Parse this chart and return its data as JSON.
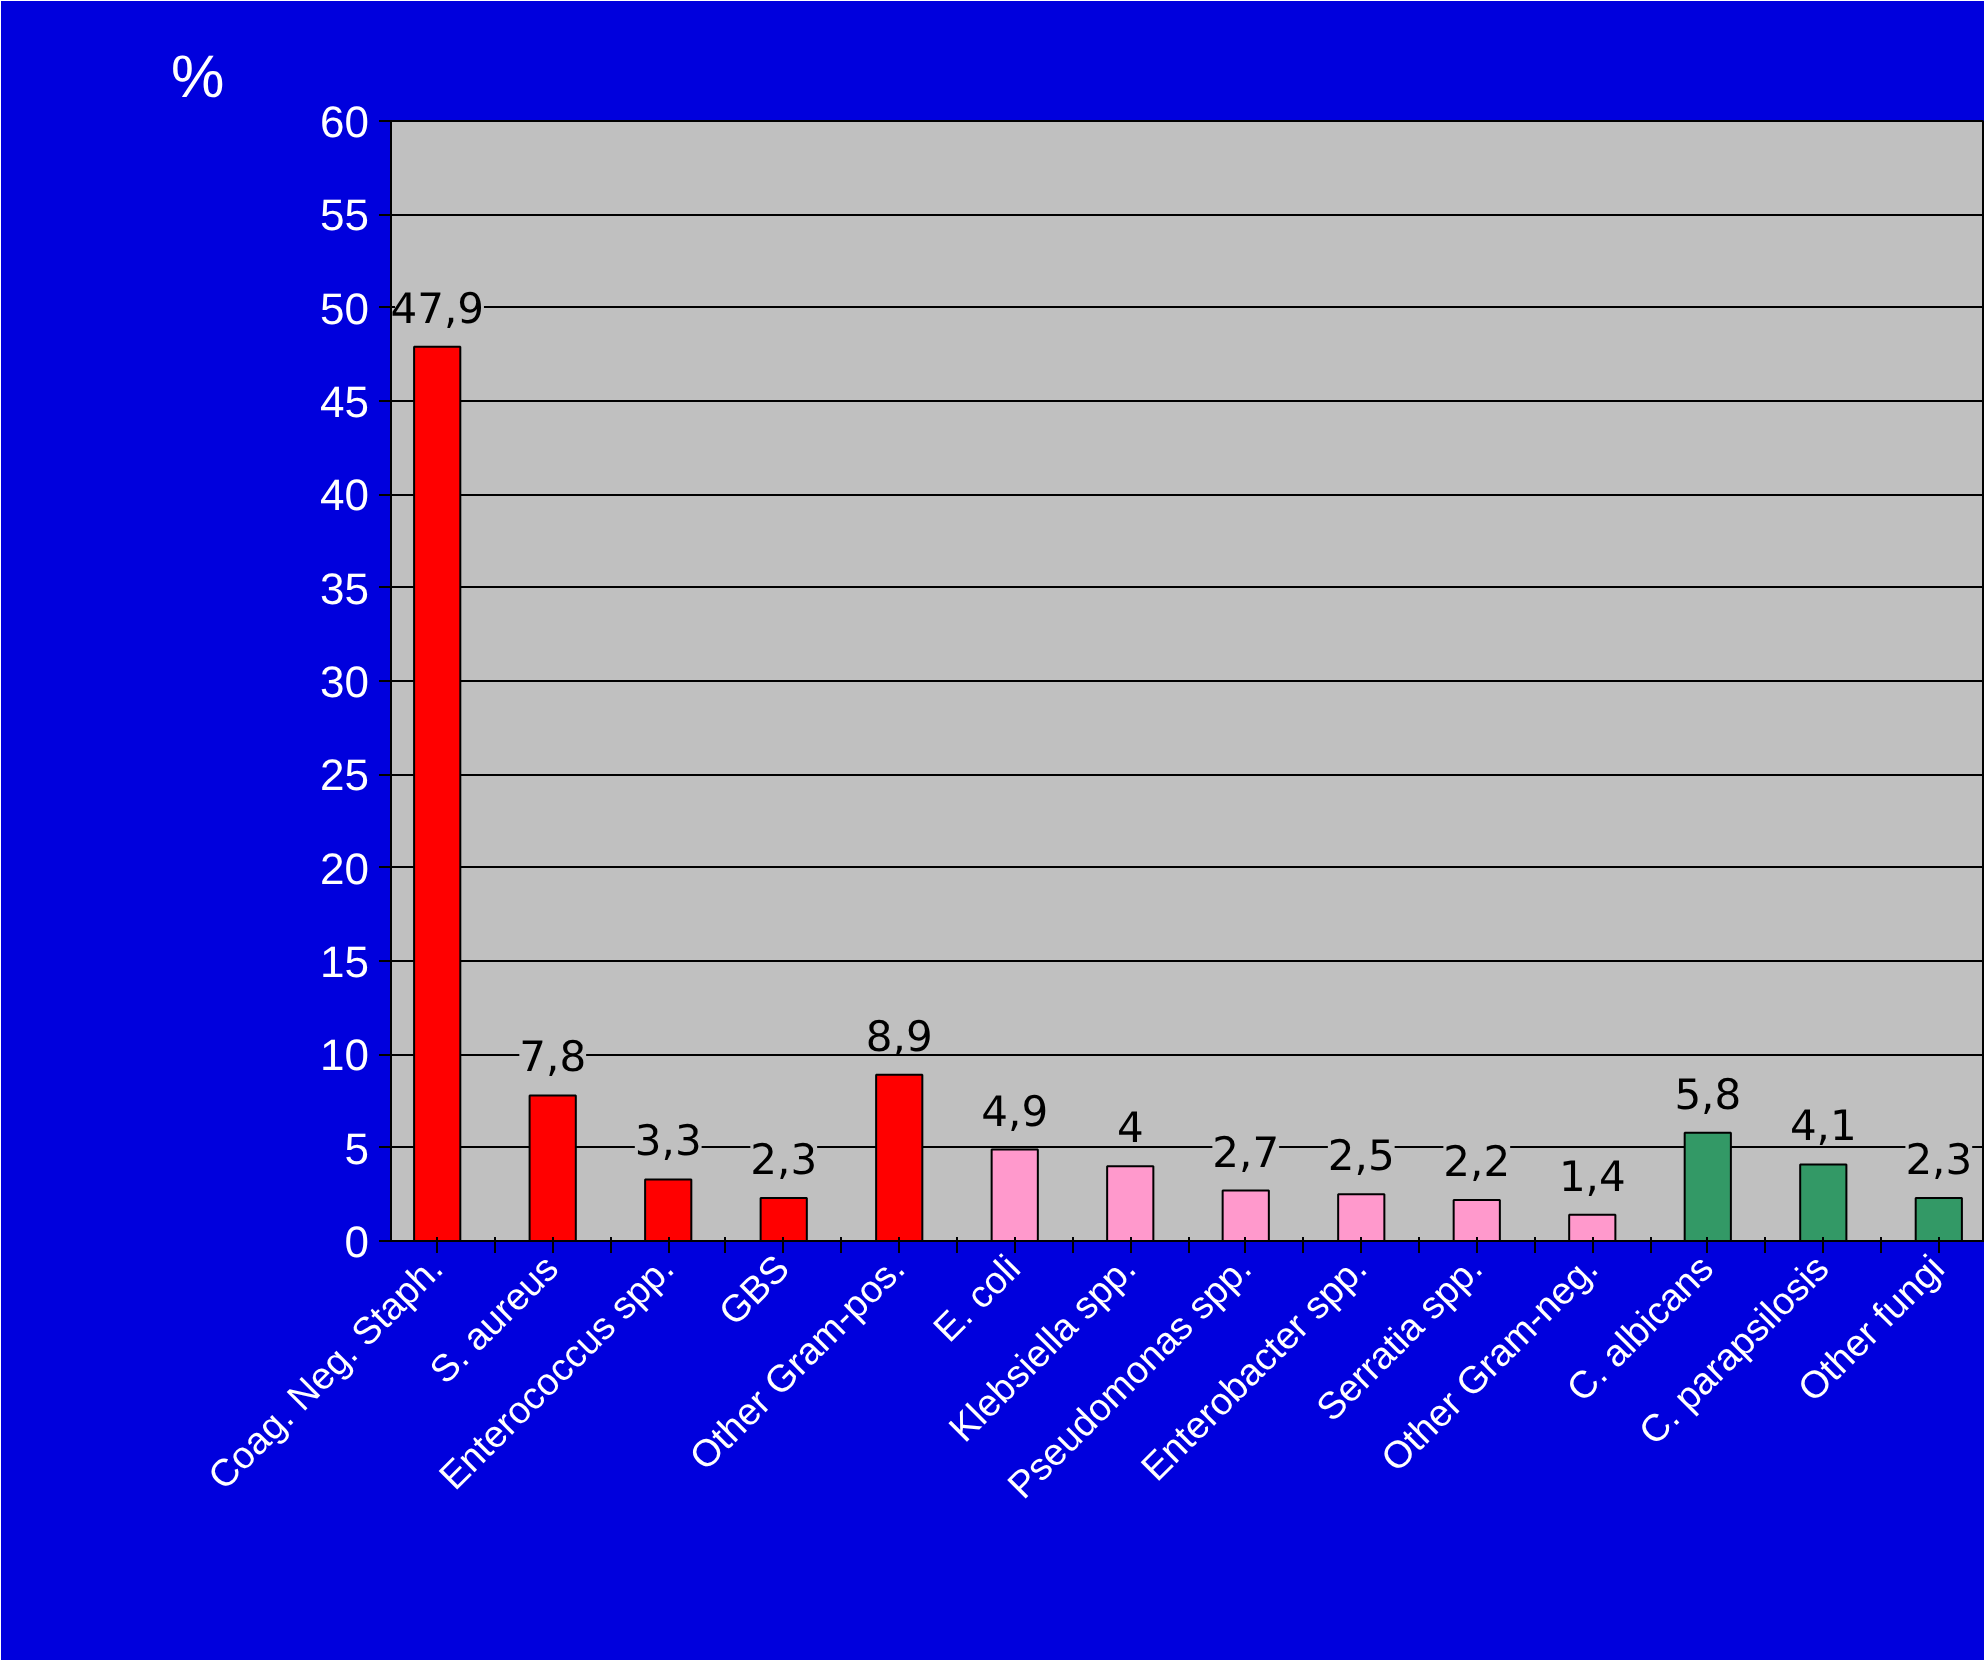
{
  "chart_data": {
    "type": "bar",
    "ylabel": "%",
    "categories": [
      "Coag. Neg. Staph.",
      "S. aureus",
      "Enterococcus spp.",
      "GBS",
      "Other Gram-pos.",
      "E. coli",
      "Klebsiella spp.",
      "Pseudomonas spp.",
      "Enterobacter spp.",
      "Serratia spp.",
      "Other Gram-neg.",
      "C. albicans",
      "C. parapsilosis",
      "Other fungi"
    ],
    "values": [
      47.9,
      7.8,
      3.3,
      2.3,
      8.9,
      4.9,
      4,
      2.7,
      2.5,
      2.2,
      1.4,
      5.8,
      4.1,
      2.3
    ],
    "value_labels": [
      "47,9",
      "7,8",
      "3,3",
      "2,3",
      "8,9",
      "4,9",
      "4",
      "2,7",
      "2,5",
      "2,2",
      "1,4",
      "5,8",
      "4,1",
      "2,3"
    ],
    "colors": [
      "#ff0000",
      "#ff0000",
      "#ff0000",
      "#ff0000",
      "#ff0000",
      "#ff99cc",
      "#ff99cc",
      "#ff99cc",
      "#ff99cc",
      "#ff99cc",
      "#ff99cc",
      "#339966",
      "#339966",
      "#339966"
    ],
    "ylim": [
      0,
      60
    ],
    "yticks": [
      0,
      5,
      10,
      15,
      20,
      25,
      30,
      35,
      40,
      45,
      50,
      55,
      60
    ],
    "grid": "y"
  }
}
